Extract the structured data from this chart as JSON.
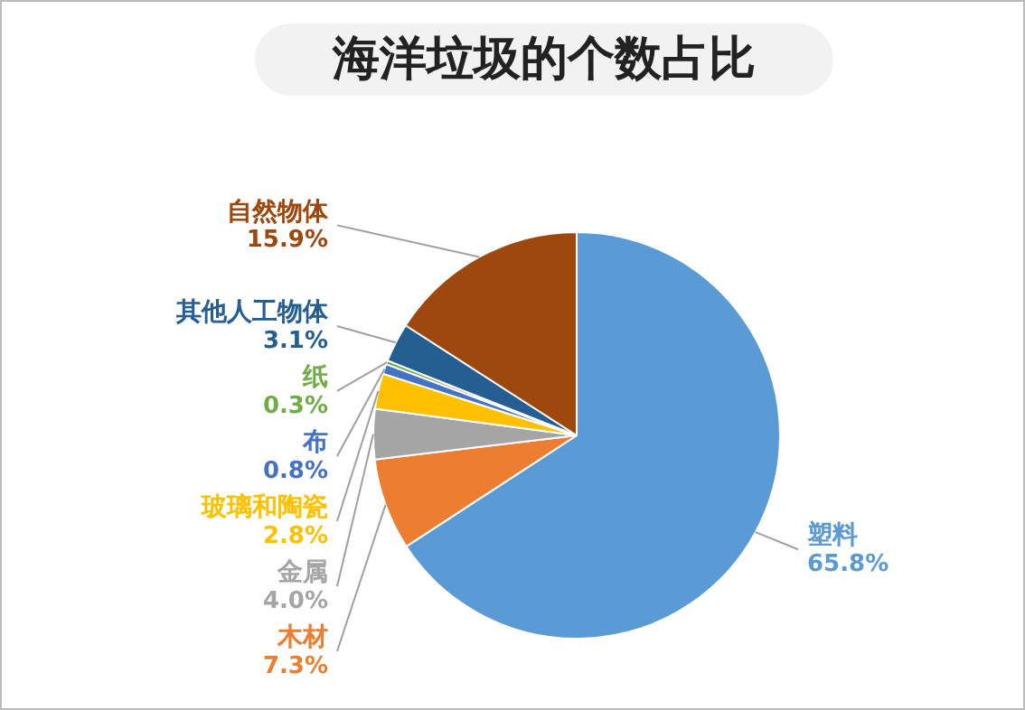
{
  "chart_data": {
    "type": "pie",
    "title": "海洋垃圾的个数占比",
    "categories": [
      "塑料",
      "木材",
      "金属",
      "玻璃和陶瓷",
      "布",
      "纸",
      "其他人工物体",
      "自然物体"
    ],
    "values": [
      65.8,
      7.3,
      4.0,
      2.8,
      0.8,
      0.3,
      3.1,
      15.9
    ],
    "value_labels": [
      "65.8%",
      "7.3%",
      "4.0%",
      "2.8%",
      "0.8%",
      "0.3%",
      "3.1%",
      "15.9%"
    ],
    "colors": [
      "#5b9bd5",
      "#ed7d31",
      "#a5a5a5",
      "#ffc000",
      "#4472c4",
      "#70ad47",
      "#255e91",
      "#9e480e"
    ],
    "legend": false
  }
}
